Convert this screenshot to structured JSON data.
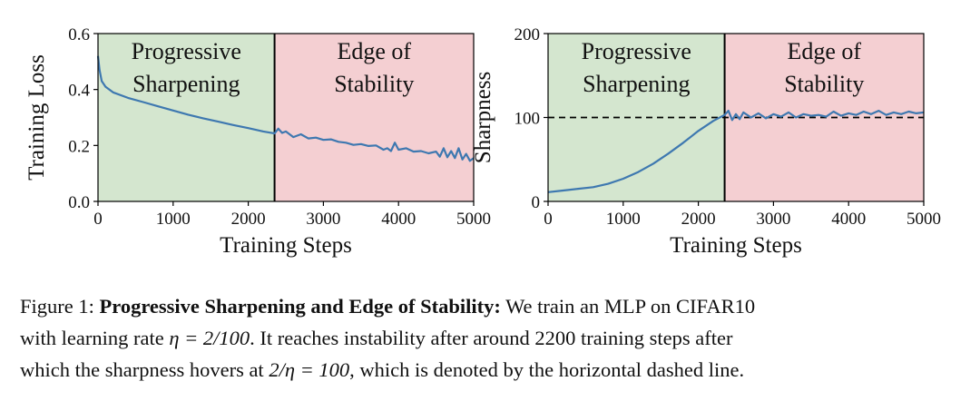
{
  "colors": {
    "progressive_region": "#d4e6cf",
    "eos_region": "#f4cfd2",
    "line": "#3e78b0",
    "divider": "#000000",
    "dashed": "#000000"
  },
  "chart_data": [
    {
      "type": "line",
      "xlabel": "Training Steps",
      "ylabel": "Training Loss",
      "xlim": [
        0,
        5000
      ],
      "ylim": [
        0.0,
        0.6
      ],
      "xticks": [
        "0",
        "1000",
        "2000",
        "3000",
        "4000",
        "5000"
      ],
      "yticks": [
        "0.0",
        "0.2",
        "0.4",
        "0.6"
      ],
      "xtick_values": [
        0,
        1000,
        2000,
        3000,
        4000,
        5000
      ],
      "ytick_values": [
        0.0,
        0.2,
        0.4,
        0.6
      ],
      "regions": [
        {
          "label_lines": [
            "Progressive",
            "Sharpening"
          ],
          "x_range": [
            0,
            2350
          ],
          "color": "#d4e6cf"
        },
        {
          "label_lines": [
            "Edge of",
            "Stability"
          ],
          "x_range": [
            2350,
            5000
          ],
          "color": "#f4cfd2"
        }
      ],
      "divider_x": 2350,
      "series": [
        {
          "x": [
            0,
            20,
            50,
            100,
            200,
            400,
            600,
            800,
            1000,
            1200,
            1400,
            1600,
            1800,
            2000,
            2200,
            2350,
            2400,
            2450,
            2500,
            2600,
            2700,
            2800,
            2900,
            3000,
            3100,
            3200,
            3300,
            3400,
            3500,
            3600,
            3700,
            3800,
            3850,
            3900,
            3950,
            4000,
            4100,
            4200,
            4300,
            4400,
            4500,
            4550,
            4600,
            4650,
            4700,
            4750,
            4800,
            4850,
            4900,
            4950,
            5000
          ],
          "values": [
            0.52,
            0.47,
            0.43,
            0.41,
            0.39,
            0.37,
            0.355,
            0.34,
            0.325,
            0.31,
            0.297,
            0.285,
            0.273,
            0.262,
            0.25,
            0.243,
            0.26,
            0.245,
            0.25,
            0.23,
            0.24,
            0.225,
            0.228,
            0.22,
            0.222,
            0.213,
            0.21,
            0.202,
            0.205,
            0.198,
            0.2,
            0.185,
            0.19,
            0.18,
            0.21,
            0.185,
            0.19,
            0.178,
            0.18,
            0.172,
            0.178,
            0.16,
            0.19,
            0.158,
            0.18,
            0.155,
            0.19,
            0.15,
            0.17,
            0.145,
            0.155
          ]
        }
      ]
    },
    {
      "type": "line",
      "xlabel": "Training Steps",
      "ylabel": "Sharpness",
      "xlim": [
        0,
        5000
      ],
      "ylim": [
        0,
        200
      ],
      "xticks": [
        "0",
        "1000",
        "2000",
        "3000",
        "4000",
        "5000"
      ],
      "yticks": [
        "0",
        "100",
        "200"
      ],
      "xtick_values": [
        0,
        1000,
        2000,
        3000,
        4000,
        5000
      ],
      "ytick_values": [
        0,
        100,
        200
      ],
      "regions": [
        {
          "label_lines": [
            "Progressive",
            "Sharpening"
          ],
          "x_range": [
            0,
            2350
          ],
          "color": "#d4e6cf"
        },
        {
          "label_lines": [
            "Edge of",
            "Stability"
          ],
          "x_range": [
            2350,
            5000
          ],
          "color": "#f4cfd2"
        }
      ],
      "divider_x": 2350,
      "hline": 100,
      "series": [
        {
          "x": [
            0,
            200,
            400,
            600,
            800,
            1000,
            1200,
            1400,
            1600,
            1800,
            2000,
            2200,
            2350,
            2400,
            2450,
            2500,
            2550,
            2600,
            2700,
            2800,
            2900,
            3000,
            3100,
            3200,
            3300,
            3400,
            3500,
            3600,
            3700,
            3800,
            3900,
            4000,
            4100,
            4200,
            4300,
            4400,
            4500,
            4600,
            4700,
            4800,
            4900,
            5000
          ],
          "values": [
            11,
            13,
            15,
            17,
            21,
            27,
            35,
            45,
            57,
            70,
            84,
            96,
            103,
            108,
            97,
            104,
            98,
            106,
            100,
            105,
            99,
            104,
            101,
            106,
            100,
            104,
            102,
            103,
            101,
            107,
            102,
            105,
            103,
            107,
            104,
            108,
            103,
            106,
            104,
            107,
            105,
            106
          ]
        }
      ]
    }
  ],
  "caption": {
    "figure_label": "Figure 1:",
    "bold_title": "Progressive Sharpening and Edge of Stability:",
    "line1_rest": "We train an MLP on CIFAR10",
    "line2_a": "with learning rate",
    "line2_math": "η = 2/100",
    "line2_b": ". It reaches instability after around 2200 training steps after",
    "line3_a": "which the sharpness hovers at",
    "line3_math": "2/η = 100",
    "line3_b": ", which is denoted by the horizontal dashed line."
  }
}
